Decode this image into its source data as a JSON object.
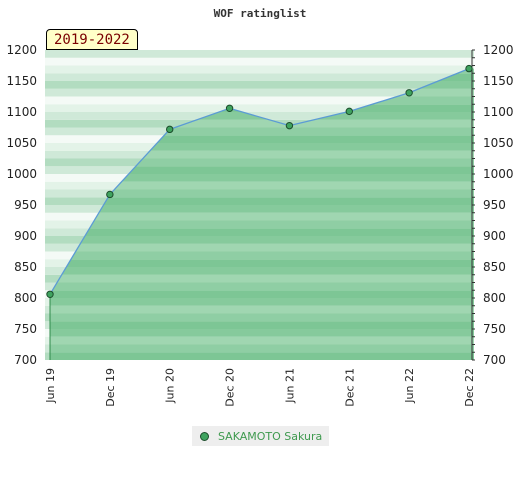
{
  "chart_data": {
    "type": "area",
    "title": "WOF ratinglist",
    "period_badge": "2019-2022",
    "categories": [
      "Jun 19",
      "Dec 19",
      "Jun 20",
      "Dec 20",
      "Jun 21",
      "Dec 21",
      "Jun 22",
      "Dec 22"
    ],
    "series": [
      {
        "name": "SAKAMOTO Sakura",
        "values": [
          806,
          967,
          1072,
          1106,
          1078,
          1101,
          1131,
          1170
        ]
      }
    ],
    "ylim": [
      700,
      1200
    ],
    "yticks": [
      700,
      750,
      800,
      850,
      900,
      950,
      1000,
      1050,
      1100,
      1150,
      1200
    ],
    "y_axis_right": true,
    "legend_placement": "bottom-center",
    "colors": {
      "area_fill": "#7fc797",
      "line": "#5b9bd5",
      "marker": "#3fa35f"
    }
  }
}
